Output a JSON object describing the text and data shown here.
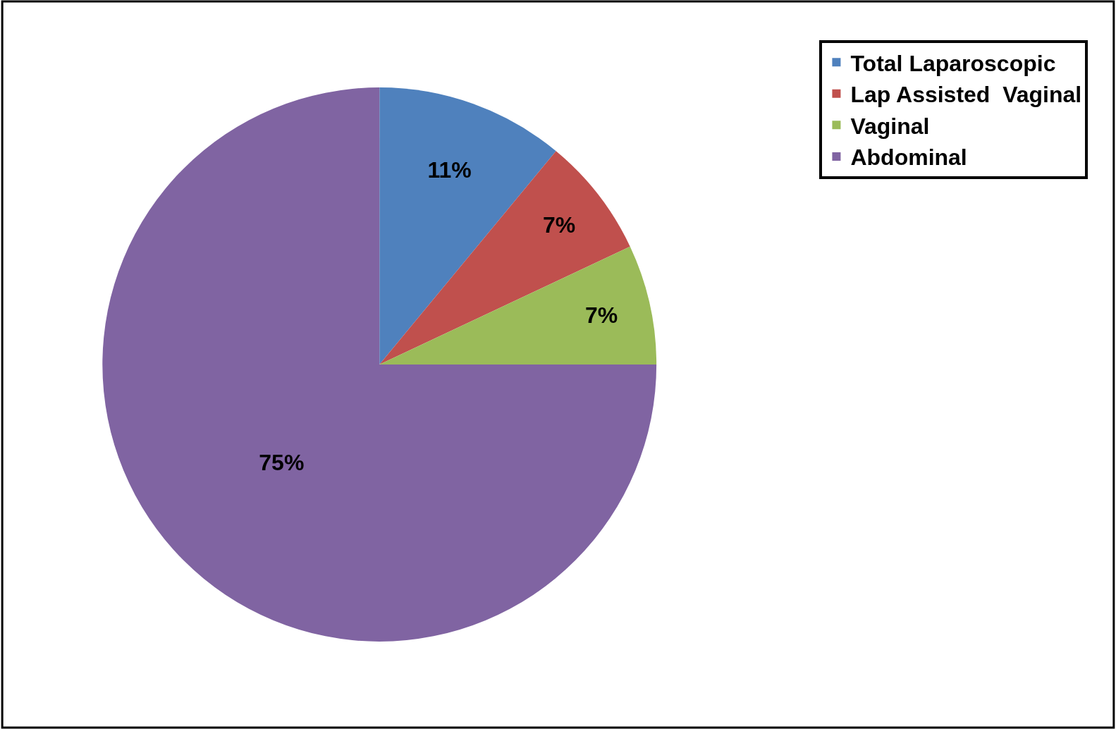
{
  "chart_data": {
    "type": "pie",
    "categories": [
      "Total Laparoscopic",
      "Lap Assisted  Vaginal",
      "Vaginal",
      "Abdominal"
    ],
    "values": [
      11,
      7,
      7,
      75
    ],
    "colors": [
      "#4f81bd",
      "#c0504d",
      "#9bbb59",
      "#8064a2"
    ],
    "value_labels": [
      "11%",
      "7%",
      "7%",
      "75%"
    ],
    "legend": "top right"
  }
}
